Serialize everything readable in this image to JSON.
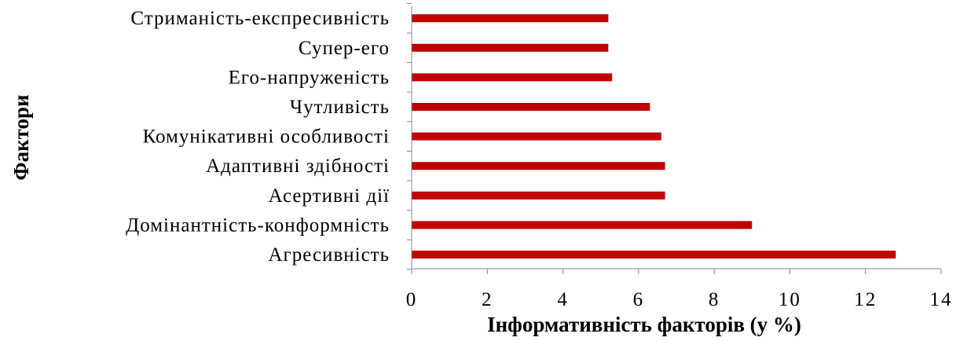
{
  "chart_data": {
    "type": "bar",
    "orientation": "horizontal",
    "categories": [
      "Агресивність",
      "Домінантність-конформність",
      "Асертивні дії",
      "Адаптивні здібності",
      "Комунікативні особливості",
      "Чутливість",
      "Его-напруженість",
      "Супер-его",
      "Стриманість-експресивність"
    ],
    "values": [
      12.8,
      9.0,
      6.7,
      6.7,
      6.6,
      6.3,
      5.3,
      5.2,
      5.2
    ],
    "xlabel": "Інформативність факторів (у %)",
    "ylabel": "Фактори",
    "xlim": [
      0,
      14
    ],
    "xticks": [
      "0",
      "2",
      "4",
      "6",
      "8",
      "10",
      "12",
      "14"
    ],
    "grid": false,
    "legend": "none",
    "bar_color": "#c00000"
  }
}
